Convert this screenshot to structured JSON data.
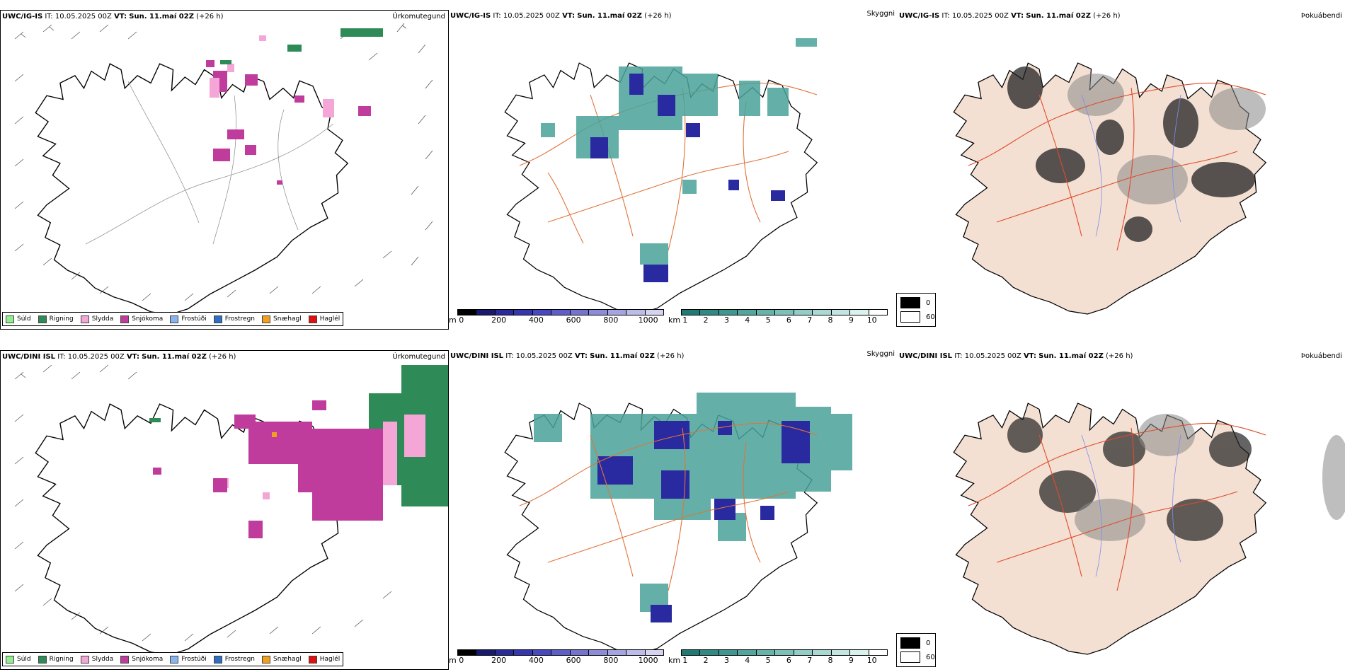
{
  "rows": [
    {
      "model": "UWC/IG-IS",
      "it_label": "IT:",
      "it_value": "10.05.2025 00Z",
      "vt_label": "VT:",
      "vt_value": "Sun. 11.maí 02Z",
      "lead": "(+26 h)",
      "titles": {
        "precip": "Úrkomutegund",
        "vis": "Skyggni",
        "fog": "Þokuábendi"
      }
    },
    {
      "model": "UWC/DINI ISL",
      "it_label": "IT:",
      "it_value": "10.05.2025 00Z",
      "vt_label": "VT:",
      "vt_value": "Sun. 11.maí 02Z",
      "lead": "(+26 h)",
      "titles": {
        "precip": "Úrkomutegund",
        "vis": "Skyggni",
        "fog": "Þokuábendi"
      }
    }
  ],
  "precip_legend": [
    {
      "label": "Súld",
      "color": "#90ee90"
    },
    {
      "label": "Rigning",
      "color": "#2e8b57"
    },
    {
      "label": "Slydda",
      "color": "#f4a6d7"
    },
    {
      "label": "Snjókoma",
      "color": "#c03c9c"
    },
    {
      "label": "Frostúði",
      "color": "#8ab4f0"
    },
    {
      "label": "Frostregn",
      "color": "#2f6fbf"
    },
    {
      "label": "Snæhagl",
      "color": "#f0a020"
    },
    {
      "label": "Haglél",
      "color": "#e01010"
    }
  ],
  "ceiling_bar": {
    "unit": "m",
    "ticks": [
      "0",
      "200",
      "400",
      "600",
      "800",
      "1000"
    ],
    "colors": [
      "#000000",
      "#191970",
      "#2a2a9a",
      "#3636b0",
      "#4848c0",
      "#5e5ec8",
      "#7474cf",
      "#8c8cd8",
      "#a4a4e0",
      "#bcbce8",
      "#d4d4f0"
    ]
  },
  "visibility_bar": {
    "unit": "km",
    "ticks": [
      "1",
      "2",
      "3",
      "4",
      "5",
      "6",
      "7",
      "8",
      "9",
      "10"
    ],
    "colors": [
      "#1f7a73",
      "#2e8a83",
      "#3f9890",
      "#52a69e",
      "#66b3ac",
      "#7cc0b9",
      "#93cdc7",
      "#aad9d4",
      "#c2e5e1",
      "#dbf1ee",
      "#ffffff"
    ]
  },
  "fog_legend": [
    {
      "label": "0",
      "color": "#000000"
    },
    {
      "label": "60",
      "color": "#ffffff"
    }
  ],
  "colors": {
    "road": "#e0733a",
    "coast": "#000000",
    "land_fog": "#f3e0d2",
    "river": "#7c8cf0",
    "wind": "#555555"
  }
}
